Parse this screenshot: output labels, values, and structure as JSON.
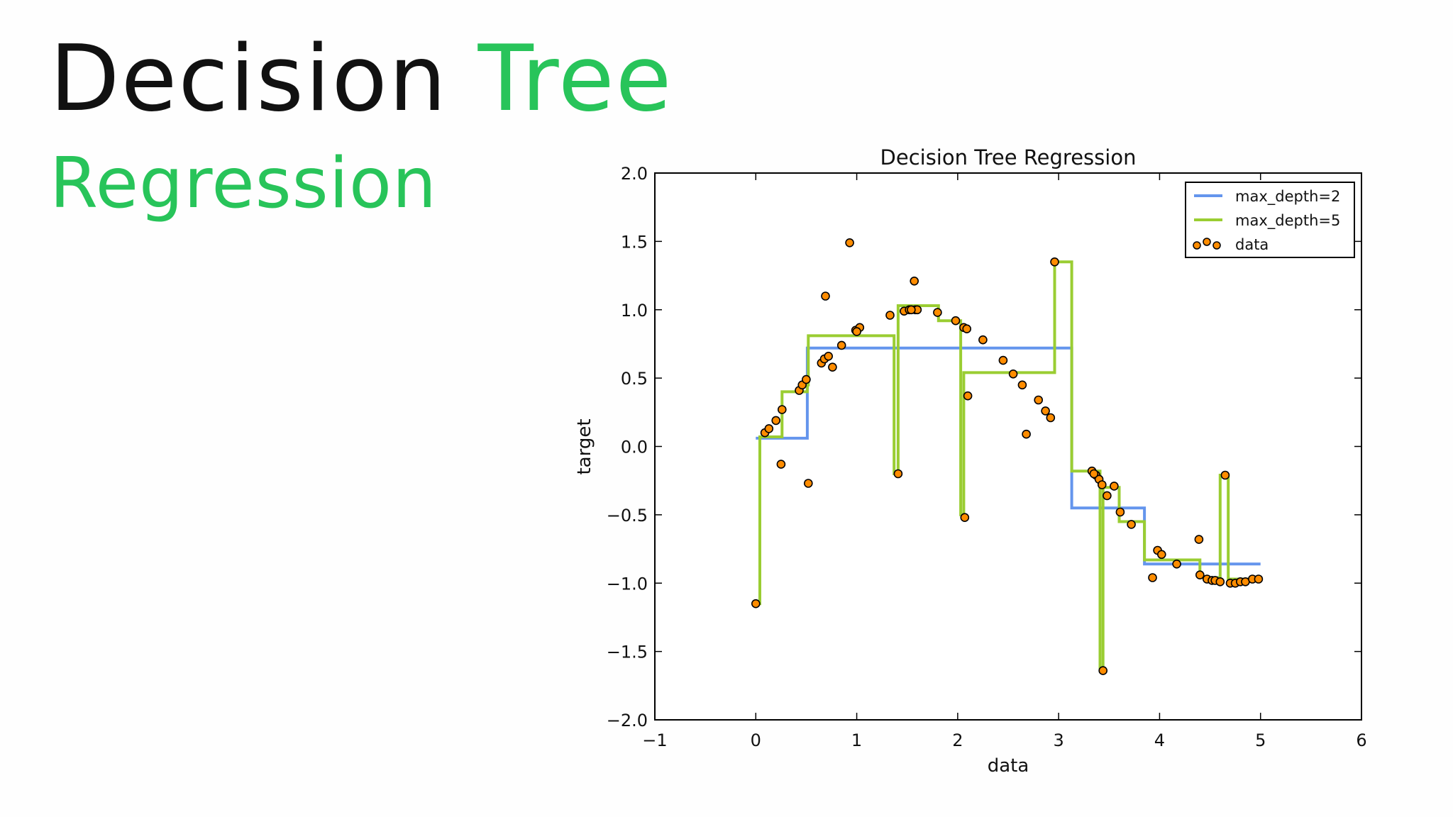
{
  "slide": {
    "title_word1": "Decision",
    "title_word2": "Tree",
    "subtitle": "Regression",
    "accent_color": "#28c45a"
  },
  "chart_data": {
    "type": "line",
    "title": "Decision Tree Regression",
    "xlabel": "data",
    "ylabel": "target",
    "xlim": [
      -1,
      6
    ],
    "ylim": [
      -2.0,
      2.0
    ],
    "xticks": [
      -1,
      0,
      1,
      2,
      3,
      4,
      5,
      6
    ],
    "xtick_labels": [
      "−1",
      "0",
      "1",
      "2",
      "3",
      "4",
      "5",
      "6"
    ],
    "yticks": [
      2.0,
      1.5,
      1.0,
      0.5,
      0.0,
      -0.5,
      -1.0,
      -1.5,
      -2.0
    ],
    "ytick_labels": [
      "2.0",
      "1.5",
      "1.0",
      "0.5",
      "0.0",
      "−0.5",
      "−1.0",
      "−1.5",
      "−2.0"
    ],
    "grid": false,
    "legend_position": "top-right",
    "series": [
      {
        "name": "max_depth=2",
        "kind": "step-line",
        "color": "#6495ed",
        "x": [
          0,
          0.51,
          0.51,
          3.13,
          3.13,
          3.85,
          3.85,
          5.0
        ],
        "y": [
          0.06,
          0.06,
          0.72,
          0.72,
          -0.45,
          -0.45,
          -0.86,
          -0.86
        ]
      },
      {
        "name": "max_depth=5",
        "kind": "step-line",
        "color": "#9acd32",
        "x": [
          0,
          0.04,
          0.04,
          0.13,
          0.13,
          0.26,
          0.26,
          0.51,
          0.51,
          0.52,
          0.52,
          1.37,
          1.37,
          1.41,
          1.41,
          1.81,
          1.81,
          2.03,
          2.03,
          2.06,
          2.06,
          2.09,
          2.09,
          2.96,
          2.96,
          3.13,
          3.13,
          3.41,
          3.41,
          3.44,
          3.44,
          3.6,
          3.6,
          3.85,
          3.85,
          4.4,
          4.4,
          4.6,
          4.6,
          4.68,
          4.68,
          5.0
        ],
        "y": [
          -1.15,
          -1.15,
          0.07,
          0.07,
          0.07,
          0.07,
          0.4,
          0.4,
          0.45,
          0.45,
          0.81,
          0.81,
          -0.2,
          -0.2,
          1.03,
          1.03,
          0.92,
          0.92,
          -0.5,
          -0.5,
          0.54,
          0.54,
          0.54,
          0.54,
          1.35,
          1.35,
          -0.18,
          -0.18,
          -1.64,
          -1.64,
          -0.3,
          -0.3,
          -0.55,
          -0.55,
          -0.83,
          -0.83,
          -0.96,
          -0.96,
          -0.21,
          -0.21,
          -0.97,
          -0.97
        ]
      },
      {
        "name": "data",
        "kind": "scatter",
        "color": "#ff8c00",
        "x": [
          0.0,
          0.09,
          0.13,
          0.2,
          0.25,
          0.26,
          0.43,
          0.46,
          0.5,
          0.52,
          0.65,
          0.68,
          0.72,
          0.76,
          0.85,
          0.93,
          0.99,
          1.03,
          1.33,
          1.41,
          1.47,
          1.52,
          1.57,
          1.58,
          1.6,
          1.8,
          1.98,
          2.06,
          2.07,
          2.09,
          2.1,
          2.25,
          2.45,
          2.55,
          2.64,
          2.68,
          2.8,
          2.87,
          2.92,
          2.96,
          3.33,
          3.37,
          3.4,
          3.43,
          3.44,
          3.48,
          3.55,
          3.61,
          3.72,
          3.93,
          3.98,
          4.02,
          4.17,
          4.39,
          4.4,
          4.47,
          4.52,
          4.55,
          4.6,
          4.65,
          4.7,
          4.75,
          4.8,
          4.85,
          4.92,
          4.98
        ],
        "y": [
          -1.15,
          0.1,
          0.13,
          0.19,
          -0.13,
          0.27,
          0.41,
          0.45,
          0.49,
          -0.27,
          0.61,
          0.64,
          0.66,
          0.58,
          0.74,
          1.49,
          0.85,
          0.87,
          0.96,
          -0.2,
          0.99,
          1.0,
          1.21,
          1.0,
          1.0,
          0.98,
          0.92,
          0.87,
          -0.52,
          0.86,
          0.37,
          0.78,
          0.63,
          0.53,
          0.45,
          0.09,
          0.34,
          0.26,
          0.21,
          1.35,
          -0.18,
          -0.21,
          -0.24,
          -0.28,
          -1.64,
          -0.36,
          -0.29,
          -0.48,
          -0.57,
          -0.96,
          -0.76,
          -0.79,
          -0.86,
          -0.68,
          -0.94,
          -0.97,
          -0.98,
          -0.98,
          -0.99,
          -0.21,
          -1.0,
          -1.0,
          -0.99,
          -0.99,
          -0.97,
          -0.97
        ],
        "x_extra": [
          0.69,
          1.0,
          1.54,
          3.35
        ],
        "y_extra": [
          1.1,
          0.84,
          1.0,
          -0.2
        ]
      }
    ]
  }
}
